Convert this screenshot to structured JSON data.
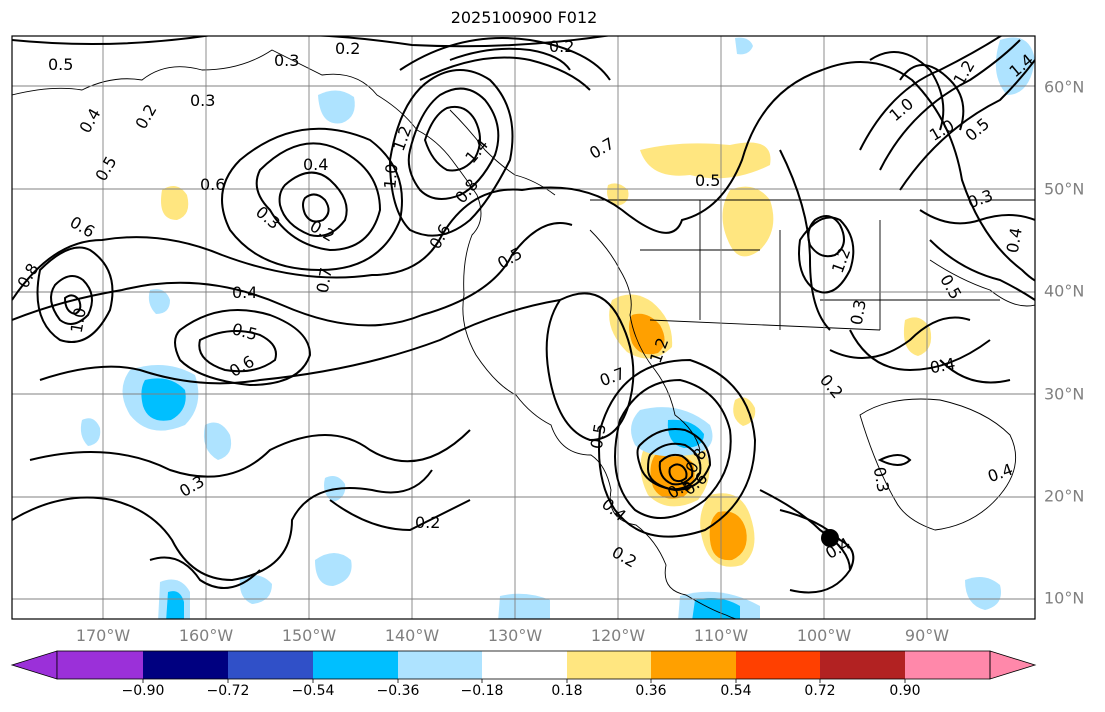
{
  "title": "2025100900 F012",
  "lon_labels": [
    "170°W",
    "160°W",
    "150°W",
    "140°W",
    "130°W",
    "120°W",
    "110°W",
    "100°W",
    "90°W"
  ],
  "lat_labels": [
    "60°N",
    "50°N",
    "40°N",
    "30°N",
    "20°N",
    "10°N"
  ],
  "contour_labels": [
    "0.5",
    "0.3",
    "0.2",
    "0.2",
    "0.3",
    "0.4",
    "0.5",
    "0.6",
    "0.6",
    "0.4",
    "0.3",
    "0.2",
    "0.7",
    "0.8",
    "1.0",
    "0.4",
    "0.5",
    "0.6",
    "0.8",
    "1.0",
    "1.2",
    "1.4",
    "0.7",
    "0.5",
    "0.5",
    "0.6",
    "0.7",
    "0.5",
    "0.4",
    "0.3",
    "0.2",
    "0.2",
    "0.4",
    "0.5",
    "0.6",
    "0.8",
    "1.0",
    "1.2",
    "1.2",
    "1.0",
    "0.5",
    "0.3",
    "0.4",
    "0.5",
    "0.2",
    "0.3",
    "0.4",
    "0.3",
    "0.4",
    "0.2",
    "1.2",
    "1.4"
  ],
  "colorbar": {
    "ticks": [
      "−0.90",
      "−0.72",
      "−0.54",
      "−0.36",
      "−0.18",
      "0.18",
      "0.36",
      "0.54",
      "0.72",
      "0.90"
    ],
    "colors": [
      "#9b30d9",
      "#000080",
      "#3050c8",
      "#00bfff",
      "#aee3ff",
      "#ffffff",
      "#ffe680",
      "#ffa000",
      "#ff4000",
      "#b22222",
      "#ff88aa"
    ]
  },
  "fill_colors": {
    "pos1": "#ffe680",
    "pos2": "#ffa000",
    "neg1": "#aee3ff",
    "neg2": "#00bfff"
  }
}
